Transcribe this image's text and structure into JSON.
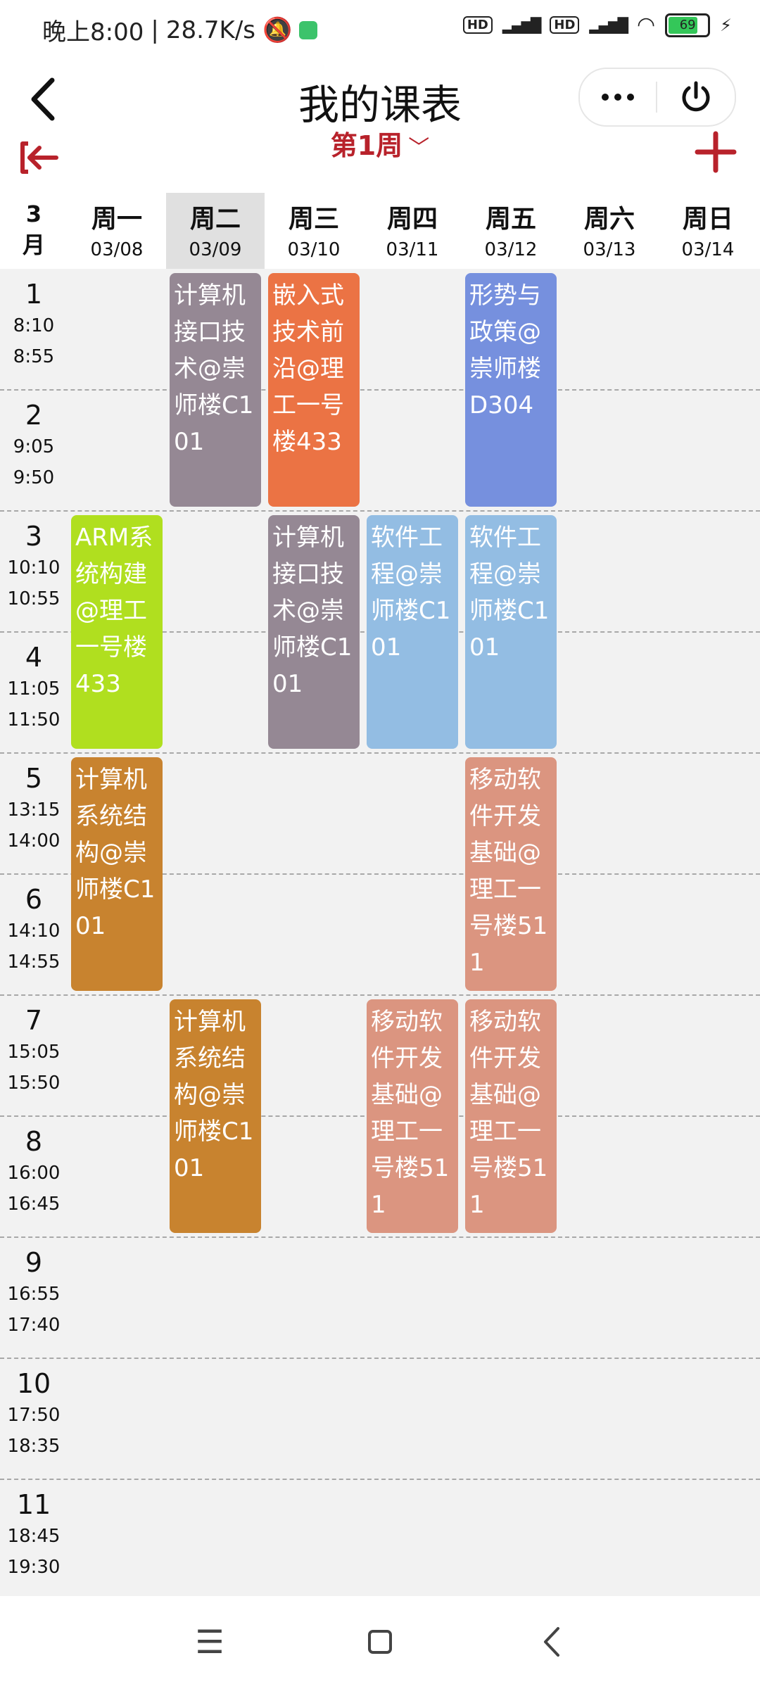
{
  "status_bar": {
    "time": "晚上8:00",
    "speed": "28.7K/s",
    "battery": "69"
  },
  "header": {
    "title": "我的课表",
    "week_label": "第1周"
  },
  "month": "3\n月",
  "days": [
    {
      "name": "周一",
      "date": "03/08",
      "today": false
    },
    {
      "name": "周二",
      "date": "03/09",
      "today": true
    },
    {
      "name": "周三",
      "date": "03/10",
      "today": false
    },
    {
      "name": "周四",
      "date": "03/11",
      "today": false
    },
    {
      "name": "周五",
      "date": "03/12",
      "today": false
    },
    {
      "name": "周六",
      "date": "03/13",
      "today": false
    },
    {
      "name": "周日",
      "date": "03/14",
      "today": false
    }
  ],
  "periods": [
    {
      "num": "1",
      "start": "8:10",
      "end": "8:55"
    },
    {
      "num": "2",
      "start": "9:05",
      "end": "9:50"
    },
    {
      "num": "3",
      "start": "10:10",
      "end": "10:55"
    },
    {
      "num": "4",
      "start": "11:05",
      "end": "11:50"
    },
    {
      "num": "5",
      "start": "13:15",
      "end": "14:00"
    },
    {
      "num": "6",
      "start": "14:10",
      "end": "14:55"
    },
    {
      "num": "7",
      "start": "15:05",
      "end": "15:50"
    },
    {
      "num": "8",
      "start": "16:00",
      "end": "16:45"
    },
    {
      "num": "9",
      "start": "16:55",
      "end": "17:40"
    },
    {
      "num": "10",
      "start": "17:50",
      "end": "18:35"
    },
    {
      "num": "11",
      "start": "18:45",
      "end": "19:30"
    }
  ],
  "courses": [
    {
      "day": 2,
      "start": 1,
      "span": 2,
      "text": "计算机接口技术@崇师楼C101",
      "color": "#958894"
    },
    {
      "day": 3,
      "start": 1,
      "span": 2,
      "text": "嵌入式技术前沿@理工一号楼433",
      "color": "#eb7344"
    },
    {
      "day": 5,
      "start": 1,
      "span": 2,
      "text": "形势与政策@崇师楼D304",
      "color": "#7690de"
    },
    {
      "day": 1,
      "start": 3,
      "span": 2,
      "text": "ARM系统构建@理工一号楼433",
      "color": "#b0df1f"
    },
    {
      "day": 3,
      "start": 3,
      "span": 2,
      "text": "计算机接口技术@崇师楼C101",
      "color": "#958894"
    },
    {
      "day": 4,
      "start": 3,
      "span": 2,
      "text": "软件工程@崇师楼C101",
      "color": "#93bde3"
    },
    {
      "day": 5,
      "start": 3,
      "span": 2,
      "text": "软件工程@崇师楼C101",
      "color": "#93bde3"
    },
    {
      "day": 1,
      "start": 5,
      "span": 2,
      "text": "计算机系统结构@崇师楼C101",
      "color": "#c8832f"
    },
    {
      "day": 5,
      "start": 5,
      "span": 2,
      "text": "移动软件开发基础@理工一号楼511",
      "color": "#db9580"
    },
    {
      "day": 2,
      "start": 7,
      "span": 2,
      "text": "计算机系统结构@崇师楼C101",
      "color": "#c8832f"
    },
    {
      "day": 4,
      "start": 7,
      "span": 2,
      "text": "移动软件开发基础@理工一号楼511",
      "color": "#db9580"
    },
    {
      "day": 5,
      "start": 7,
      "span": 2,
      "text": "移动软件开发基础@理工一号楼511",
      "color": "#db9580"
    }
  ]
}
